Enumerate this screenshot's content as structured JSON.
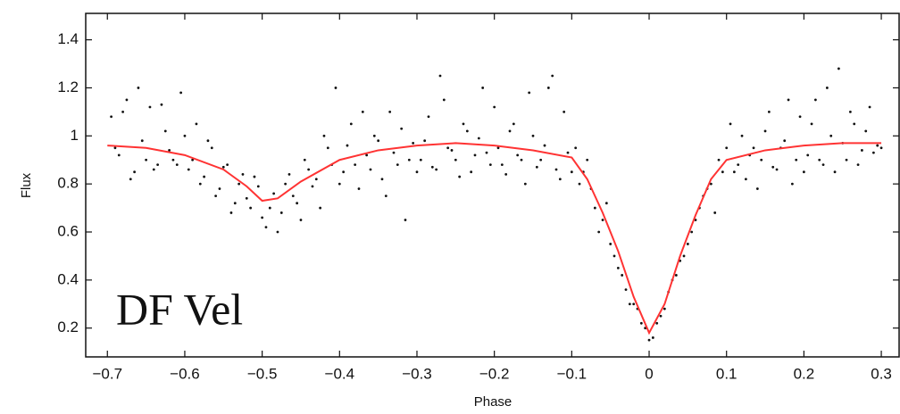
{
  "chart_data": {
    "type": "scatter",
    "xlabel": "Phase",
    "ylabel": "Flux",
    "annotation": "DF Vel",
    "xlim": [
      -0.728,
      0.323
    ],
    "ylim": [
      0.08,
      1.51
    ],
    "xticks": [
      {
        "value": -0.7,
        "label": "−0.7"
      },
      {
        "value": -0.6,
        "label": "−0.6"
      },
      {
        "value": -0.5,
        "label": "−0.5"
      },
      {
        "value": -0.4,
        "label": "−0.4"
      },
      {
        "value": -0.3,
        "label": "−0.3"
      },
      {
        "value": -0.2,
        "label": "−0.2"
      },
      {
        "value": -0.1,
        "label": "−0.1"
      },
      0,
      0.1,
      0.2,
      0.3
    ],
    "yticks": [
      0.2,
      0.4,
      0.6,
      0.8,
      1,
      1.2,
      1.4
    ],
    "series": [
      {
        "type": "scatter",
        "color": "#111111",
        "x": [
          -0.695,
          -0.685,
          -0.675,
          -0.665,
          -0.655,
          -0.645,
          -0.635,
          -0.625,
          -0.615,
          -0.605,
          -0.595,
          -0.585,
          -0.575,
          -0.565,
          -0.555,
          -0.545,
          -0.535,
          -0.525,
          -0.515,
          -0.505,
          -0.495,
          -0.485,
          -0.475,
          -0.465,
          -0.455,
          -0.445,
          -0.435,
          -0.425,
          -0.415,
          -0.405,
          -0.395,
          -0.385,
          -0.375,
          -0.365,
          -0.355,
          -0.345,
          -0.335,
          -0.325,
          -0.315,
          -0.305,
          -0.295,
          -0.285,
          -0.275,
          -0.265,
          -0.255,
          -0.245,
          -0.235,
          -0.225,
          -0.215,
          -0.205,
          -0.195,
          -0.185,
          -0.175,
          -0.165,
          -0.155,
          -0.145,
          -0.135,
          -0.125,
          -0.115,
          -0.105,
          -0.095,
          -0.085,
          -0.075,
          -0.065,
          -0.055,
          -0.045,
          -0.035,
          -0.025,
          -0.015,
          -0.005,
          0.005,
          0.015,
          0.025,
          0.035,
          0.045,
          0.055,
          0.065,
          0.075,
          0.085,
          0.095,
          0.105,
          0.115,
          0.125,
          0.135,
          0.145,
          0.155,
          0.165,
          0.175,
          0.185,
          0.195,
          0.205,
          0.215,
          0.225,
          0.235,
          0.245,
          0.255,
          0.265,
          0.275,
          0.285,
          0.295,
          -0.69,
          -0.68,
          -0.67,
          -0.66,
          -0.65,
          -0.64,
          -0.63,
          -0.62,
          -0.61,
          -0.6,
          -0.59,
          -0.58,
          -0.57,
          -0.56,
          -0.55,
          -0.54,
          -0.53,
          -0.52,
          -0.51,
          -0.5,
          -0.49,
          -0.48,
          -0.47,
          -0.46,
          -0.45,
          -0.44,
          -0.43,
          -0.42,
          -0.41,
          -0.4,
          -0.39,
          -0.38,
          -0.37,
          -0.36,
          -0.35,
          -0.34,
          -0.33,
          -0.32,
          -0.31,
          -0.3,
          -0.29,
          -0.28,
          -0.27,
          -0.26,
          -0.25,
          -0.24,
          -0.23,
          -0.22,
          -0.21,
          -0.2,
          -0.19,
          -0.18,
          -0.17,
          -0.16,
          -0.15,
          -0.14,
          -0.13,
          -0.12,
          -0.11,
          -0.1,
          -0.09,
          -0.08,
          -0.07,
          -0.06,
          -0.05,
          -0.04,
          -0.03,
          -0.02,
          -0.01,
          0,
          0.01,
          0.02,
          0.03,
          0.04,
          0.05,
          0.06,
          0.07,
          0.08,
          0.09,
          0.1,
          0.11,
          0.12,
          0.13,
          0.14,
          0.15,
          0.16,
          0.17,
          0.18,
          0.19,
          0.2,
          0.21,
          0.22,
          0.23,
          0.24,
          0.25,
          0.26,
          0.27,
          0.28,
          0.29,
          0.3
        ],
        "values": [
          1.08,
          0.92,
          1.15,
          0.85,
          0.98,
          1.12,
          0.88,
          1.02,
          0.9,
          1.18,
          0.86,
          1.05,
          0.83,
          0.95,
          0.78,
          0.88,
          0.72,
          0.84,
          0.7,
          0.79,
          0.62,
          0.76,
          0.68,
          0.84,
          0.72,
          0.9,
          0.79,
          0.7,
          0.95,
          1.2,
          0.85,
          1.05,
          0.78,
          0.92,
          1.0,
          0.82,
          1.1,
          0.88,
          0.65,
          0.97,
          0.9,
          1.08,
          0.86,
          1.15,
          0.94,
          0.83,
          1.02,
          0.92,
          1.2,
          0.88,
          0.95,
          0.84,
          1.05,
          0.9,
          1.18,
          0.87,
          0.96,
          1.25,
          0.82,
          0.93,
          0.95,
          0.85,
          0.78,
          0.6,
          0.72,
          0.5,
          0.42,
          0.3,
          0.28,
          0.2,
          0.16,
          0.25,
          0.35,
          0.42,
          0.5,
          0.6,
          0.7,
          0.78,
          0.68,
          0.85,
          1.05,
          0.88,
          0.82,
          0.95,
          0.9,
          1.1,
          0.86,
          0.98,
          0.8,
          1.08,
          0.92,
          1.15,
          0.88,
          1.0,
          1.28,
          0.9,
          1.05,
          0.94,
          1.12,
          0.96,
          0.95,
          1.1,
          0.82,
          1.2,
          0.9,
          0.86,
          1.13,
          0.94,
          0.88,
          1.0,
          0.9,
          0.8,
          0.98,
          0.75,
          0.87,
          0.68,
          0.8,
          0.74,
          0.83,
          0.66,
          0.7,
          0.6,
          0.8,
          0.75,
          0.65,
          0.86,
          0.82,
          1.0,
          0.88,
          0.8,
          0.96,
          0.88,
          1.1,
          0.86,
          0.98,
          0.75,
          0.93,
          1.03,
          0.9,
          0.85,
          0.98,
          0.87,
          1.25,
          0.95,
          0.9,
          1.05,
          0.85,
          0.99,
          0.93,
          1.12,
          0.88,
          1.02,
          0.92,
          0.8,
          1.0,
          0.9,
          1.2,
          0.86,
          1.1,
          0.85,
          0.8,
          0.9,
          0.7,
          0.65,
          0.55,
          0.45,
          0.36,
          0.3,
          0.22,
          0.15,
          0.22,
          0.28,
          0.4,
          0.48,
          0.55,
          0.65,
          0.75,
          0.8,
          0.9,
          0.95,
          0.85,
          1.0,
          0.92,
          0.78,
          1.02,
          0.87,
          0.95,
          1.15,
          0.9,
          0.85,
          1.05,
          0.9,
          1.2,
          0.85,
          0.97,
          1.1,
          0.88,
          1.02,
          0.93,
          0.95
        ]
      },
      {
        "type": "line",
        "color": "#ff3333",
        "x": [
          -0.7,
          -0.65,
          -0.6,
          -0.55,
          -0.52,
          -0.5,
          -0.48,
          -0.45,
          -0.4,
          -0.35,
          -0.3,
          -0.25,
          -0.2,
          -0.15,
          -0.1,
          -0.08,
          -0.06,
          -0.04,
          -0.02,
          0,
          0.02,
          0.04,
          0.06,
          0.08,
          0.1,
          0.15,
          0.2,
          0.25,
          0.3
        ],
        "values": [
          0.96,
          0.95,
          0.92,
          0.86,
          0.79,
          0.73,
          0.74,
          0.81,
          0.9,
          0.94,
          0.96,
          0.97,
          0.96,
          0.94,
          0.91,
          0.82,
          0.68,
          0.52,
          0.33,
          0.18,
          0.3,
          0.5,
          0.67,
          0.82,
          0.9,
          0.94,
          0.96,
          0.97,
          0.97
        ]
      }
    ]
  }
}
